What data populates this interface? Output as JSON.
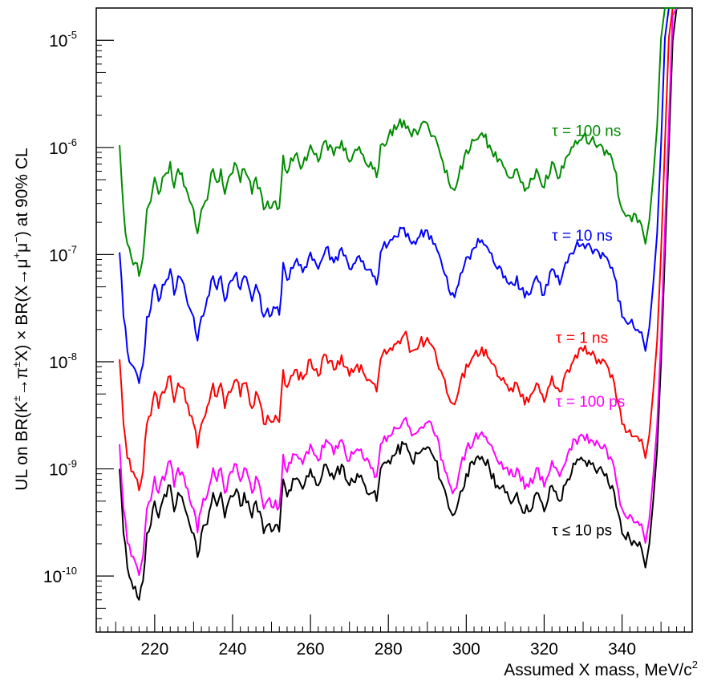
{
  "chart_data": {
    "type": "line",
    "title": "",
    "xlabel": "Assumed X mass, MeV/c",
    "xlabel_sup": "2",
    "ylabel": {
      "p1": "UL on BR(K",
      "s1": "±",
      "p2": "→π",
      "s2": "±",
      "p3": "X) × BR(X→μ",
      "s3": "+",
      "p4": "μ",
      "s4": "−",
      "p5": ") at 90% CL"
    },
    "xlim": [
      205,
      358
    ],
    "ylim": [
      3e-11,
      2e-05
    ],
    "y_scale": "log",
    "x_ticks": [
      220,
      240,
      260,
      280,
      300,
      320,
      340
    ],
    "x_tick_labels": [
      "220",
      "240",
      "260",
      "280",
      "300",
      "320",
      "340"
    ],
    "y_ticks": [
      1e-10,
      1e-09,
      1e-08,
      1e-07,
      1e-06,
      1e-05
    ],
    "y_tick_labels": [
      {
        "base": "10",
        "exp": "-10"
      },
      {
        "base": "10",
        "exp": "-9"
      },
      {
        "base": "10",
        "exp": "-8"
      },
      {
        "base": "10",
        "exp": "-7"
      },
      {
        "base": "10",
        "exp": "-6"
      },
      {
        "base": "10",
        "exp": "-5"
      }
    ],
    "grid": false,
    "base_curve": {
      "x": [
        211,
        212,
        213,
        214,
        215,
        216,
        217,
        218,
        219,
        220,
        221,
        222,
        223,
        224,
        225,
        226,
        227,
        228,
        229,
        230,
        231,
        232,
        233,
        234,
        235,
        236,
        237,
        238,
        239,
        240,
        241,
        242,
        243,
        244,
        245,
        246,
        247,
        248,
        249,
        250,
        251,
        252,
        253,
        254,
        256,
        258,
        260,
        262,
        264,
        266,
        268,
        270,
        272,
        274,
        276,
        277,
        278,
        280,
        282,
        284,
        285,
        286,
        288,
        290,
        292,
        294,
        296,
        297,
        298,
        300,
        302,
        304,
        306,
        308,
        310,
        312,
        313,
        314,
        316,
        318,
        320,
        322,
        324,
        326,
        328,
        330,
        332,
        334,
        336,
        338,
        340,
        342,
        344,
        345,
        346,
        347,
        348,
        349,
        350,
        351,
        352,
        353,
        354
      ],
      "y": [
        1e-09,
        2.5e-10,
        1.2e-10,
        9e-11,
        8e-11,
        6e-11,
        9e-11,
        2.5e-10,
        3e-10,
        5e-10,
        3.5e-10,
        5e-10,
        5.5e-10,
        7e-10,
        4e-10,
        6e-10,
        5.5e-10,
        4e-10,
        3e-10,
        2.5e-10,
        1.5e-10,
        2.5e-10,
        3e-10,
        4e-10,
        6e-10,
        4.5e-10,
        6e-10,
        3.5e-10,
        5e-10,
        5.5e-10,
        6.5e-10,
        4.5e-10,
        6e-10,
        5e-10,
        3.5e-10,
        5e-10,
        4e-10,
        2.5e-10,
        3e-10,
        2.6e-10,
        3e-10,
        2.6e-10,
        8e-10,
        5.5e-10,
        8e-10,
        6.5e-10,
        1e-09,
        7e-10,
        1.1e-09,
        8e-10,
        1.1e-09,
        7e-10,
        9e-10,
        7e-10,
        6e-10,
        5e-10,
        1e-09,
        1.2e-09,
        1.4e-09,
        1.7e-09,
        1.5e-09,
        1.2e-09,
        1.4e-09,
        1.6e-09,
        1.2e-09,
        7e-10,
        4e-10,
        3.8e-10,
        5e-10,
        9e-10,
        1.1e-09,
        1.3e-09,
        1e-09,
        7e-10,
        6e-10,
        5e-10,
        6e-10,
        4.5e-10,
        4e-10,
        6e-10,
        4e-10,
        7e-10,
        5e-10,
        8e-10,
        1.1e-09,
        1.2e-09,
        1.1e-09,
        1e-09,
        9e-10,
        6e-10,
        2.5e-10,
        2.2e-10,
        1.9e-10,
        1.8e-10,
        1.2e-10,
        2e-10,
        5e-10,
        1.5e-09,
        1e-08,
        1e-07,
        1e-06,
        1e-05,
        0.0001
      ]
    },
    "series": [
      {
        "label": "τ ≤ 10 ps",
        "color": "#000000",
        "factor": 1,
        "label_x": 322,
        "label_y": 2.4e-10,
        "seed": 11
      },
      {
        "label": "τ = 100 ps",
        "color": "#ff00ff",
        "factor": 1.7,
        "label_x": 323,
        "label_y": 3.8e-09,
        "seed": 23
      },
      {
        "label": "τ = 1 ns",
        "color": "#ff0000",
        "factor": 10.5,
        "label_x": 323,
        "label_y": 1.5e-08,
        "seed": 37
      },
      {
        "label": "τ = 10 ns",
        "color": "#0000ff",
        "factor": 105,
        "label_x": 322,
        "label_y": 1.35e-07,
        "seed": 41
      },
      {
        "label": "τ = 100 ns",
        "color": "#008c00",
        "factor": 1050,
        "label_x": 322,
        "label_y": 1.28e-06,
        "seed": 53
      }
    ]
  }
}
